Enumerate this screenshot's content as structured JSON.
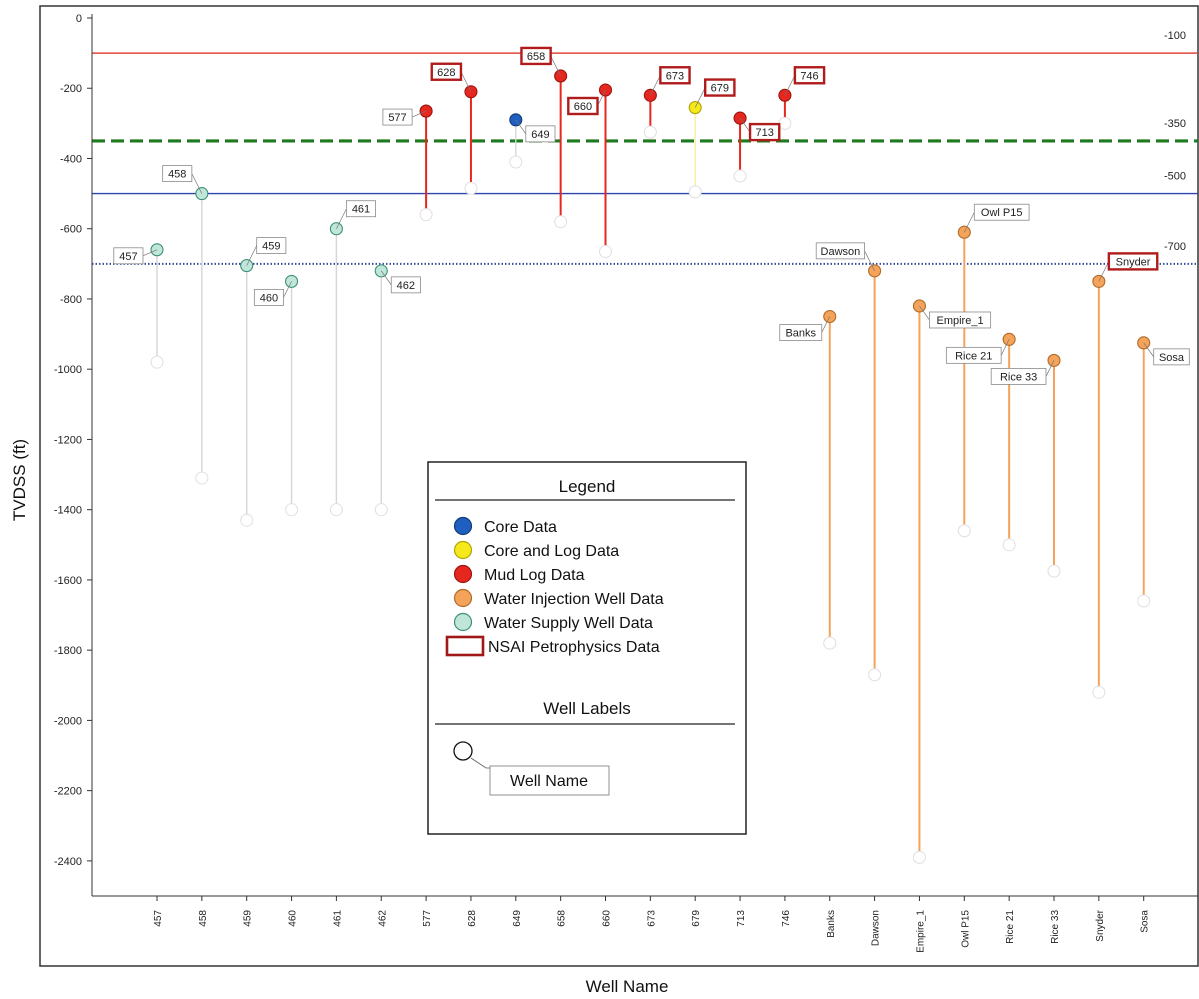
{
  "chart_data": {
    "type": "scatter",
    "ylabel": "TVDSS (ft)",
    "xlabel": "Well Name",
    "ylim": [
      -2500,
      0
    ],
    "yticks": [
      0,
      -200,
      -400,
      -600,
      -800,
      -1000,
      -1200,
      -1400,
      -1600,
      -1800,
      -2000,
      -2200,
      -2400
    ],
    "categories": [
      "457",
      "458",
      "459",
      "460",
      "461",
      "462",
      "577",
      "628",
      "649",
      "658",
      "660",
      "673",
      "679",
      "713",
      "746",
      "Banks",
      "Dawson",
      "Empire_1",
      "Owl P15",
      "Rice 21",
      "Rice 33",
      "Snyder",
      "Sosa"
    ],
    "reference_lines": [
      {
        "value": -100,
        "label": "-100",
        "color": "#e0453a",
        "style": "solid"
      },
      {
        "value": -350,
        "label": "-350",
        "color": "#1e7a1e",
        "style": "dashed"
      },
      {
        "value": -500,
        "label": "-500",
        "color": "#2a45b0",
        "style": "solid"
      },
      {
        "value": -700,
        "label": "-700",
        "color": "#3a4d9a",
        "style": "dotted"
      }
    ],
    "wells": [
      {
        "name": "457",
        "top": -660,
        "bottom": -980,
        "type": "Water Supply Well Data",
        "label": "457",
        "nsai": false,
        "label_side": "left"
      },
      {
        "name": "458",
        "top": -500,
        "bottom": -1310,
        "type": "Water Supply Well Data",
        "label": "458",
        "nsai": false,
        "label_side": "left-up"
      },
      {
        "name": "459",
        "top": -705,
        "bottom": -1430,
        "type": "Water Supply Well Data",
        "label": "459",
        "nsai": false,
        "label_side": "right-up"
      },
      {
        "name": "460",
        "top": -750,
        "bottom": -1400,
        "type": "Water Supply Well Data",
        "label": "460",
        "nsai": false,
        "label_side": "left-down"
      },
      {
        "name": "461",
        "top": -600,
        "bottom": -1400,
        "type": "Water Supply Well Data",
        "label": "461",
        "nsai": false,
        "label_side": "right-up"
      },
      {
        "name": "462",
        "top": -720,
        "bottom": -1400,
        "type": "Water Supply Well Data",
        "label": "462",
        "nsai": false,
        "label_side": "right-down"
      },
      {
        "name": "577",
        "top": -265,
        "bottom": -560,
        "type": "Mud Log Data",
        "label": "577",
        "nsai": false,
        "label_side": "left"
      },
      {
        "name": "628",
        "top": -210,
        "bottom": -485,
        "type": "Mud Log Data",
        "label": "628",
        "nsai": true,
        "label_side": "left-up"
      },
      {
        "name": "649",
        "top": -290,
        "bottom": -410,
        "type": "Core Data",
        "label": "649",
        "nsai": false,
        "label_side": "right-down"
      },
      {
        "name": "658",
        "top": -165,
        "bottom": -580,
        "type": "Mud Log Data",
        "label": "658",
        "nsai": true,
        "label_side": "left-up"
      },
      {
        "name": "660",
        "top": -205,
        "bottom": -665,
        "type": "Mud Log Data",
        "label": "660",
        "nsai": true,
        "label_side": "left-down"
      },
      {
        "name": "673",
        "top": -220,
        "bottom": -325,
        "type": "Mud Log Data",
        "label": "673",
        "nsai": true,
        "label_side": "right-up"
      },
      {
        "name": "679",
        "top": -255,
        "bottom": -495,
        "type": "Core and Log Data",
        "label": "679",
        "nsai": true,
        "label_side": "right-up"
      },
      {
        "name": "713",
        "top": -285,
        "bottom": -450,
        "type": "Mud Log Data",
        "label": "713",
        "nsai": true,
        "label_side": "right-down"
      },
      {
        "name": "746",
        "top": -220,
        "bottom": -300,
        "type": "Mud Log Data",
        "label": "746",
        "nsai": true,
        "label_side": "right-up"
      },
      {
        "name": "Banks",
        "top": -850,
        "bottom": -1780,
        "type": "Water Injection Well Data",
        "label": "Banks",
        "nsai": false,
        "label_side": "left-down"
      },
      {
        "name": "Dawson",
        "top": -720,
        "bottom": -1870,
        "type": "Water Injection Well Data",
        "label": "Dawson",
        "nsai": false,
        "label_side": "left-up"
      },
      {
        "name": "Empire_1",
        "top": -820,
        "bottom": -2390,
        "type": "Water Injection Well Data",
        "label": "Empire_1",
        "nsai": false,
        "label_side": "right-down"
      },
      {
        "name": "Owl P15",
        "top": -610,
        "bottom": -1460,
        "type": "Water Injection Well Data",
        "label": "Owl P15",
        "nsai": false,
        "label_side": "right-up"
      },
      {
        "name": "Rice 21",
        "top": -915,
        "bottom": -1500,
        "type": "Water Injection Well Data",
        "label": "Rice 21",
        "nsai": false,
        "label_side": "left-down"
      },
      {
        "name": "Rice 33",
        "top": -975,
        "bottom": -1575,
        "type": "Water Injection Well Data",
        "label": "Rice 33",
        "nsai": false,
        "label_side": "left-down"
      },
      {
        "name": "Snyder",
        "top": -750,
        "bottom": -1920,
        "type": "Water Injection Well Data",
        "label": "Snyder",
        "nsai": true,
        "label_side": "right-up"
      },
      {
        "name": "Sosa",
        "top": -925,
        "bottom": -1660,
        "type": "Water Injection Well Data",
        "label": "Sosa",
        "nsai": false,
        "label_side": "right-down"
      }
    ],
    "legend": {
      "title": "Legend",
      "items": [
        {
          "label": "Core Data",
          "color": "#1f5fbf",
          "shape": "circle"
        },
        {
          "label": "Core and Log Data",
          "color": "#f5e81c",
          "shape": "circle"
        },
        {
          "label": "Mud Log Data",
          "color": "#e5271f",
          "shape": "circle"
        },
        {
          "label": "Water Injection Well Data",
          "color": "#f4a35a",
          "shape": "circle"
        },
        {
          "label": "Water Supply Well Data",
          "color": "#bfe6d8",
          "shape": "circle"
        },
        {
          "label": "NSAI Petrophysics Data",
          "color": "#a01818",
          "shape": "box"
        }
      ],
      "subtitle": "Well Labels",
      "sample_label": "Well Name",
      "placement": "center-left"
    },
    "colors": {
      "Core Data": "#1f5fbf",
      "Core and Log Data": "#f5e81c",
      "Mud Log Data": "#e5271f",
      "Water Injection Well Data": "#f4a35a",
      "Water Supply Well Data": "#bfe6d8",
      "nsai_box": "#b01c1c"
    },
    "line_colors": {
      "Core Data": "#d8d8d8",
      "Core and Log Data": "#f6f0a0",
      "Mud Log Data": "#e5271f",
      "Water Injection Well Data": "#f4a35a",
      "Water Supply Well Data": "#d6d6d6"
    }
  }
}
